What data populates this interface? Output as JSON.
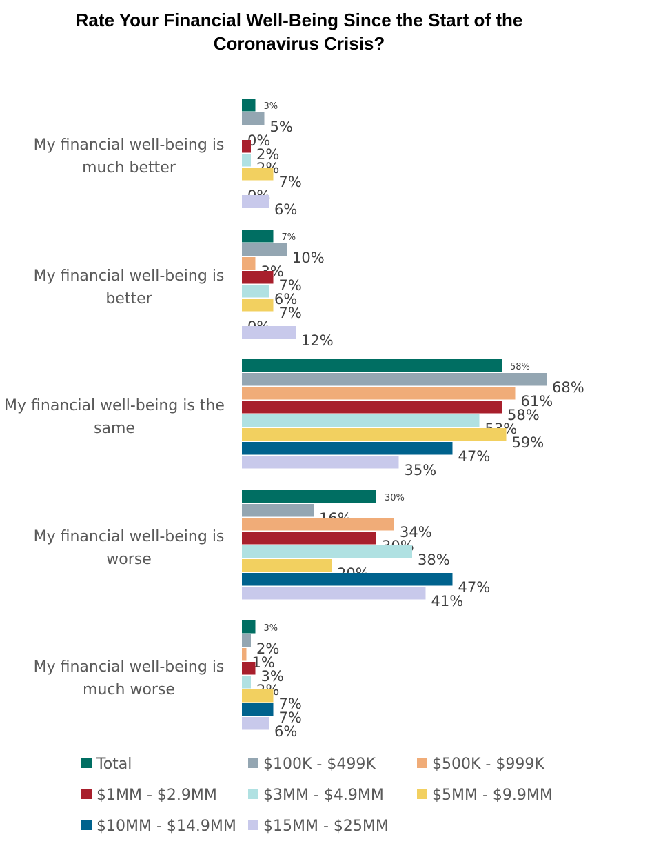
{
  "chart_data": {
    "type": "bar",
    "orientation": "horizontal",
    "title": "Rate Your Financial Well-Being Since the Start of the Coronavirus Crisis?",
    "categories": [
      "My financial well-being is much better",
      "My financial well-being is better",
      "My financial well-being is the same",
      "My financial well-being is worse",
      "My financial well-being is much worse"
    ],
    "series": [
      {
        "name": "Total",
        "color": "#006E62",
        "values": [
          3,
          7,
          58,
          30,
          3
        ]
      },
      {
        "name": "$100K - $499K",
        "color": "#94A6B2",
        "values": [
          5,
          10,
          68,
          16,
          2
        ]
      },
      {
        "name": "$500K - $999K",
        "color": "#F0AC78",
        "values": [
          0,
          3,
          61,
          34,
          1
        ]
      },
      {
        "name": "$1MM - $2.9MM",
        "color": "#A81F2C",
        "values": [
          2,
          7,
          58,
          30,
          3
        ]
      },
      {
        "name": "$3MM - $4.9MM",
        "color": "#B0E1E2",
        "values": [
          2,
          6,
          53,
          38,
          2
        ]
      },
      {
        "name": "$5MM - $9.9MM",
        "color": "#F2D060",
        "values": [
          7,
          7,
          59,
          20,
          7
        ]
      },
      {
        "name": "$10MM - $14.9MM",
        "color": "#00628D",
        "values": [
          0,
          0,
          47,
          47,
          7
        ]
      },
      {
        "name": "$15MM - $25MM",
        "color": "#C8C9EB",
        "values": [
          6,
          12,
          35,
          41,
          6
        ]
      }
    ],
    "value_suffix": "%",
    "xlim": [
      0,
      100
    ],
    "grid": false,
    "legend_position": "bottom"
  }
}
